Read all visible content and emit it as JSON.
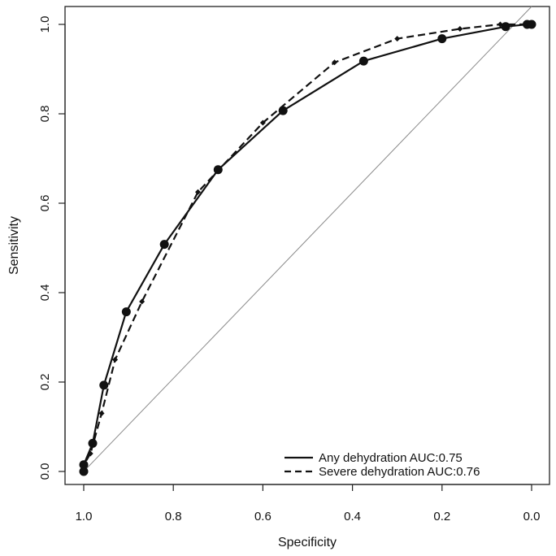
{
  "chart_data": {
    "type": "line",
    "xlabel": "Specificity",
    "ylabel": "Sensitivity",
    "x_reversed": true,
    "xlim": [
      1.0,
      0.0
    ],
    "ylim": [
      0.0,
      1.0
    ],
    "x_ticks": [
      "1.0",
      "0.8",
      "0.6",
      "0.4",
      "0.2",
      "0.0"
    ],
    "y_ticks": [
      "0.0",
      "0.2",
      "0.4",
      "0.6",
      "0.8",
      "1.0"
    ],
    "grid": false,
    "reference_line": "diagonal",
    "legend_position": "bottom-right",
    "series": [
      {
        "name": "Any dehydration AUC:0.75",
        "line_style": "solid",
        "marker": "circle",
        "points": [
          {
            "x": 1.0,
            "y": 0.0
          },
          {
            "x": 1.0,
            "y": 0.015
          },
          {
            "x": 0.98,
            "y": 0.063
          },
          {
            "x": 0.955,
            "y": 0.193
          },
          {
            "x": 0.905,
            "y": 0.357
          },
          {
            "x": 0.82,
            "y": 0.508
          },
          {
            "x": 0.7,
            "y": 0.675
          },
          {
            "x": 0.555,
            "y": 0.807
          },
          {
            "x": 0.375,
            "y": 0.918
          },
          {
            "x": 0.2,
            "y": 0.968
          },
          {
            "x": 0.058,
            "y": 0.995
          },
          {
            "x": 0.01,
            "y": 1.0
          },
          {
            "x": 0.0,
            "y": 1.0
          }
        ]
      },
      {
        "name": "Severe dehydration AUC:0.76",
        "line_style": "dashed",
        "marker": "diamond",
        "points": [
          {
            "x": 1.0,
            "y": 0.0
          },
          {
            "x": 1.0,
            "y": 0.015
          },
          {
            "x": 0.985,
            "y": 0.04
          },
          {
            "x": 0.96,
            "y": 0.13
          },
          {
            "x": 0.93,
            "y": 0.25
          },
          {
            "x": 0.87,
            "y": 0.38
          },
          {
            "x": 0.745,
            "y": 0.625
          },
          {
            "x": 0.6,
            "y": 0.78
          },
          {
            "x": 0.44,
            "y": 0.915
          },
          {
            "x": 0.3,
            "y": 0.968
          },
          {
            "x": 0.16,
            "y": 0.99
          },
          {
            "x": 0.07,
            "y": 1.0
          },
          {
            "x": 0.0,
            "y": 1.0
          }
        ]
      }
    ]
  }
}
